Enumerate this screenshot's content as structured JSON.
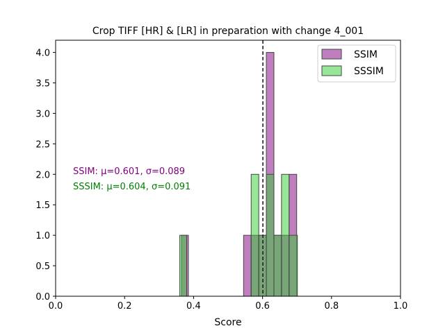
{
  "chart_data": {
    "type": "bar",
    "title": "Crop TIFF [HR] & [LR] in preparation with change 4_001",
    "xlabel": "Score",
    "ylabel": "",
    "xlim": [
      0.0,
      1.0
    ],
    "ylim": [
      0.0,
      4.2
    ],
    "xticks": [
      "0.0",
      "0.2",
      "0.4",
      "0.6",
      "0.8",
      "1.0"
    ],
    "yticks": [
      "0.0",
      "0.5",
      "1.0",
      "1.5",
      "2.0",
      "2.5",
      "3.0",
      "3.5",
      "4.0"
    ],
    "grid": false,
    "legend_position": "top-right",
    "mean_line_x": 0.601,
    "series": [
      {
        "name": "SSIM",
        "color": "#800080",
        "bins": [
          {
            "x0": 0.365,
            "x1": 0.385,
            "count": 1
          },
          {
            "x0": 0.545,
            "x1": 0.567,
            "count": 1
          },
          {
            "x0": 0.567,
            "x1": 0.589,
            "count": 1
          },
          {
            "x0": 0.589,
            "x1": 0.611,
            "count": 1
          },
          {
            "x0": 0.611,
            "x1": 0.633,
            "count": 4
          },
          {
            "x0": 0.633,
            "x1": 0.655,
            "count": 1
          },
          {
            "x0": 0.655,
            "x1": 0.677,
            "count": 1
          },
          {
            "x0": 0.677,
            "x1": 0.699,
            "count": 2
          }
        ]
      },
      {
        "name": "SSSIM",
        "color": "#32cd32",
        "bins": [
          {
            "x0": 0.36,
            "x1": 0.38,
            "count": 1
          },
          {
            "x0": 0.567,
            "x1": 0.589,
            "count": 2
          },
          {
            "x0": 0.589,
            "x1": 0.611,
            "count": 1
          },
          {
            "x0": 0.611,
            "x1": 0.633,
            "count": 2
          },
          {
            "x0": 0.633,
            "x1": 0.655,
            "count": 1
          },
          {
            "x0": 0.655,
            "x1": 0.677,
            "count": 2
          },
          {
            "x0": 0.677,
            "x1": 0.701,
            "count": 1
          }
        ]
      }
    ],
    "annotations": [
      {
        "text": "SSIM: μ=0.601, σ=0.089",
        "color": "#800080"
      },
      {
        "text": "SSSIM: μ=0.604, σ=0.091",
        "color": "#008000"
      }
    ]
  }
}
